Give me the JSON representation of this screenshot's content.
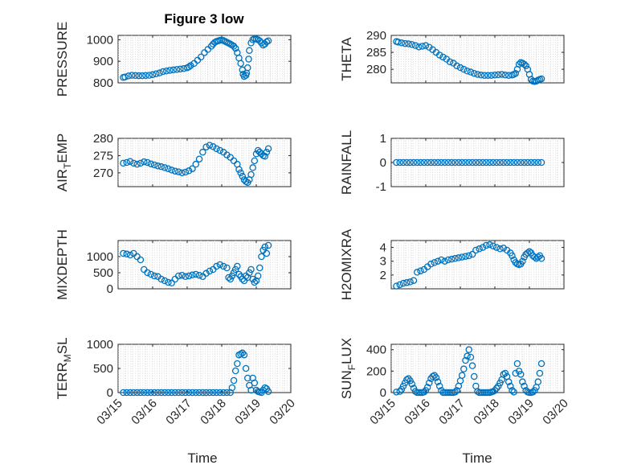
{
  "figure_title": "Figure 3 low",
  "colors": {
    "marker": "#0072BD",
    "axis": "#262626",
    "grid": "#dcdcdc"
  },
  "x_axis": {
    "label": "Time",
    "ticks": [
      0,
      1,
      2,
      3,
      4,
      5
    ],
    "tick_labels": [
      "03/15",
      "03/16",
      "03/17",
      "03/18",
      "03/19",
      "03/20"
    ],
    "range": [
      0,
      5
    ]
  },
  "chart_data": [
    {
      "type": "scatter",
      "id": "pressure",
      "ylabel": "PRESSURE",
      "ylim": [
        800,
        1020
      ],
      "yticks": [
        800,
        900,
        1000
      ],
      "grid": true,
      "x": [
        0.15,
        0.2,
        0.3,
        0.4,
        0.5,
        0.6,
        0.7,
        0.8,
        0.9,
        1.0,
        1.1,
        1.2,
        1.3,
        1.4,
        1.5,
        1.6,
        1.7,
        1.8,
        1.9,
        2.0,
        2.05,
        2.1,
        2.2,
        2.3,
        2.4,
        2.5,
        2.6,
        2.7,
        2.75,
        2.8,
        2.85,
        2.9,
        2.95,
        3.0,
        3.05,
        3.1,
        3.15,
        3.2,
        3.25,
        3.3,
        3.35,
        3.4,
        3.45,
        3.5,
        3.55,
        3.6,
        3.62,
        3.65,
        3.7,
        3.72,
        3.75,
        3.78,
        3.8,
        3.85,
        3.9,
        3.95,
        4.0,
        4.05,
        4.1,
        4.15,
        4.2,
        4.25,
        4.3,
        4.35
      ],
      "y": [
        825,
        827,
        832,
        835,
        834,
        833,
        833,
        834,
        835,
        838,
        842,
        846,
        852,
        855,
        858,
        860,
        862,
        864,
        866,
        870,
        874,
        880,
        890,
        905,
        920,
        940,
        955,
        970,
        980,
        988,
        992,
        995,
        997,
        998,
        996,
        992,
        988,
        984,
        980,
        975,
        970,
        960,
        940,
        915,
        890,
        860,
        840,
        830,
        835,
        845,
        870,
        910,
        950,
        985,
        1000,
        1004,
        1003,
        1000,
        995,
        985,
        975,
        980,
        990,
        995
      ]
    },
    {
      "type": "scatter",
      "id": "theta",
      "ylabel": "THETA",
      "ylim": [
        276,
        290
      ],
      "yticks": [
        280,
        285,
        290
      ],
      "grid": true,
      "x": [
        0.15,
        0.2,
        0.3,
        0.4,
        0.5,
        0.6,
        0.7,
        0.8,
        0.9,
        1.0,
        1.1,
        1.2,
        1.3,
        1.4,
        1.5,
        1.6,
        1.7,
        1.8,
        1.9,
        2.0,
        2.1,
        2.2,
        2.3,
        2.4,
        2.5,
        2.6,
        2.7,
        2.8,
        2.9,
        3.0,
        3.1,
        3.2,
        3.3,
        3.4,
        3.5,
        3.55,
        3.6,
        3.65,
        3.7,
        3.75,
        3.8,
        3.85,
        3.9,
        3.95,
        4.0,
        4.05,
        4.1,
        4.15,
        4.2,
        4.25,
        4.3,
        4.35
      ],
      "y": [
        288.2,
        288,
        287.8,
        287.6,
        287.5,
        287.3,
        287,
        286.6,
        286.8,
        287,
        286.5,
        285.8,
        285,
        284.2,
        283.6,
        283,
        282.2,
        281.8,
        281,
        280.5,
        280,
        279.5,
        279.2,
        278.8,
        278.5,
        278.3,
        278.2,
        278.2,
        278.2,
        278.3,
        278.4,
        278.5,
        278.3,
        278.2,
        278.3,
        278.5,
        278.8,
        280,
        281.5,
        282,
        281.8,
        281.5,
        281,
        280,
        278.5,
        277,
        276.5,
        276.4,
        276.5,
        276.8,
        277,
        277.2
      ]
    },
    {
      "type": "scatter",
      "id": "air_temp",
      "ylabel": "AIR_TEMP",
      "ylim": [
        266,
        280
      ],
      "yticks": [
        270,
        275,
        280
      ],
      "grid": true,
      "x": [
        0.15,
        0.25,
        0.35,
        0.45,
        0.55,
        0.65,
        0.75,
        0.85,
        0.95,
        1.05,
        1.15,
        1.25,
        1.35,
        1.45,
        1.55,
        1.65,
        1.75,
        1.85,
        1.95,
        2.05,
        2.15,
        2.25,
        2.35,
        2.45,
        2.55,
        2.65,
        2.75,
        2.85,
        2.95,
        3.05,
        3.15,
        3.25,
        3.35,
        3.45,
        3.5,
        3.55,
        3.6,
        3.65,
        3.7,
        3.75,
        3.8,
        3.85,
        3.9,
        3.95,
        4.0,
        4.05,
        4.1,
        4.15,
        4.2,
        4.25,
        4.3,
        4.35
      ],
      "y": [
        272.8,
        273,
        273.3,
        272.8,
        272.5,
        272.8,
        273.2,
        273,
        272.6,
        272.3,
        272,
        271.8,
        271.5,
        271.2,
        270.8,
        270.5,
        270.3,
        270,
        270.2,
        270.6,
        271.2,
        272.5,
        274,
        276,
        277.5,
        278,
        277.6,
        277,
        276.5,
        276,
        275.2,
        274.5,
        273.5,
        272.5,
        271,
        270,
        269,
        268,
        267.5,
        267.2,
        268,
        269.5,
        271.5,
        273.5,
        275.5,
        276.5,
        276,
        275.5,
        275,
        274.8,
        276,
        277
      ]
    },
    {
      "type": "scatter",
      "id": "rainfall",
      "ylabel": "RAINFALL",
      "ylim": [
        -1,
        1
      ],
      "yticks": [
        -1,
        0,
        1
      ],
      "grid": true,
      "x": [
        0.15,
        0.25,
        0.35,
        0.45,
        0.55,
        0.65,
        0.75,
        0.85,
        0.95,
        1.05,
        1.15,
        1.25,
        1.35,
        1.45,
        1.55,
        1.65,
        1.75,
        1.85,
        1.95,
        2.05,
        2.15,
        2.25,
        2.35,
        2.45,
        2.55,
        2.65,
        2.75,
        2.85,
        2.95,
        3.05,
        3.15,
        3.25,
        3.35,
        3.45,
        3.55,
        3.65,
        3.75,
        3.85,
        3.95,
        4.05,
        4.15,
        4.25,
        4.35
      ],
      "y": [
        0,
        0,
        0,
        0,
        0,
        0,
        0,
        0,
        0,
        0,
        0,
        0,
        0,
        0,
        0,
        0,
        0,
        0,
        0,
        0,
        0,
        0,
        0,
        0,
        0,
        0,
        0,
        0,
        0,
        0,
        0,
        0,
        0,
        0,
        0,
        0,
        0,
        0,
        0,
        0,
        0,
        0,
        0
      ]
    },
    {
      "type": "scatter",
      "id": "mixdepth",
      "ylabel": "MIXDEPTH",
      "ylim": [
        0,
        1500
      ],
      "yticks": [
        0,
        500,
        1000
      ],
      "grid": true,
      "x": [
        0.15,
        0.25,
        0.35,
        0.45,
        0.55,
        0.65,
        0.75,
        0.85,
        0.95,
        1.05,
        1.15,
        1.25,
        1.35,
        1.45,
        1.55,
        1.65,
        1.75,
        1.85,
        1.95,
        2.05,
        2.15,
        2.25,
        2.35,
        2.45,
        2.55,
        2.65,
        2.75,
        2.85,
        2.95,
        3.05,
        3.15,
        3.2,
        3.25,
        3.3,
        3.35,
        3.4,
        3.45,
        3.5,
        3.55,
        3.6,
        3.65,
        3.7,
        3.75,
        3.8,
        3.85,
        3.9,
        3.95,
        4.0,
        4.05,
        4.1,
        4.15,
        4.2,
        4.25,
        4.3,
        4.35
      ],
      "y": [
        1100,
        1080,
        1050,
        1100,
        1000,
        900,
        600,
        500,
        450,
        400,
        380,
        300,
        250,
        200,
        180,
        300,
        400,
        420,
        380,
        400,
        430,
        450,
        420,
        380,
        480,
        550,
        600,
        700,
        750,
        700,
        650,
        350,
        300,
        400,
        500,
        600,
        700,
        450,
        380,
        300,
        250,
        400,
        350,
        500,
        600,
        300,
        200,
        250,
        400,
        650,
        1000,
        1200,
        1300,
        1100,
        1350
      ]
    },
    {
      "type": "scatter",
      "id": "h2omixra",
      "ylabel": "H2OMIXRA",
      "ylim": [
        1,
        4.5
      ],
      "yticks": [
        2,
        3,
        4
      ],
      "grid": true,
      "x": [
        0.15,
        0.25,
        0.35,
        0.45,
        0.55,
        0.65,
        0.75,
        0.85,
        0.95,
        1.05,
        1.15,
        1.25,
        1.35,
        1.45,
        1.55,
        1.65,
        1.75,
        1.85,
        1.95,
        2.05,
        2.15,
        2.25,
        2.35,
        2.45,
        2.55,
        2.65,
        2.75,
        2.85,
        2.95,
        3.05,
        3.15,
        3.25,
        3.35,
        3.45,
        3.5,
        3.55,
        3.6,
        3.65,
        3.7,
        3.75,
        3.8,
        3.85,
        3.9,
        3.95,
        4.0,
        4.05,
        4.1,
        4.15,
        4.2,
        4.25,
        4.3,
        4.35
      ],
      "y": [
        1.2,
        1.3,
        1.4,
        1.45,
        1.5,
        1.6,
        2.2,
        2.3,
        2.4,
        2.6,
        2.8,
        2.9,
        3.0,
        3.1,
        3.0,
        3.1,
        3.15,
        3.2,
        3.25,
        3.3,
        3.35,
        3.4,
        3.5,
        3.8,
        3.9,
        4.0,
        4.15,
        4.2,
        4.1,
        4.0,
        3.9,
        3.95,
        3.8,
        3.6,
        3.4,
        3.1,
        2.9,
        2.8,
        2.75,
        2.8,
        3.0,
        3.3,
        3.5,
        3.6,
        3.7,
        3.6,
        3.4,
        3.3,
        3.2,
        3.3,
        3.4,
        3.2
      ]
    },
    {
      "type": "scatter",
      "id": "terr_msl",
      "ylabel": "TERR_MSL",
      "ylim": [
        0,
        1000
      ],
      "yticks": [
        0,
        500,
        1000
      ],
      "grid": true,
      "x": [
        0.15,
        0.25,
        0.35,
        0.45,
        0.55,
        0.65,
        0.75,
        0.85,
        0.95,
        1.05,
        1.15,
        1.25,
        1.35,
        1.45,
        1.55,
        1.65,
        1.75,
        1.85,
        1.95,
        2.05,
        2.15,
        2.25,
        2.35,
        2.45,
        2.55,
        2.65,
        2.75,
        2.85,
        2.95,
        3.05,
        3.15,
        3.25,
        3.3,
        3.35,
        3.4,
        3.45,
        3.5,
        3.55,
        3.6,
        3.65,
        3.7,
        3.75,
        3.8,
        3.85,
        3.9,
        3.95,
        4.0,
        4.05,
        4.1,
        4.15,
        4.2,
        4.25,
        4.3,
        4.35
      ],
      "y": [
        0,
        0,
        0,
        0,
        0,
        0,
        0,
        0,
        0,
        0,
        0,
        0,
        0,
        0,
        0,
        0,
        0,
        0,
        0,
        0,
        0,
        0,
        0,
        0,
        0,
        0,
        0,
        0,
        0,
        0,
        0,
        0,
        100,
        250,
        450,
        600,
        780,
        800,
        820,
        780,
        500,
        300,
        150,
        50,
        300,
        200,
        50,
        20,
        10,
        0,
        50,
        100,
        80,
        20
      ]
    },
    {
      "type": "scatter",
      "id": "sun_flux",
      "ylabel": "SUN_FLUX",
      "ylim": [
        0,
        450
      ],
      "yticks": [
        0,
        200,
        400
      ],
      "grid": true,
      "x": [
        0.15,
        0.25,
        0.3,
        0.35,
        0.4,
        0.45,
        0.5,
        0.55,
        0.6,
        0.65,
        0.7,
        0.75,
        0.8,
        0.85,
        0.9,
        0.95,
        1.0,
        1.05,
        1.1,
        1.15,
        1.2,
        1.25,
        1.3,
        1.35,
        1.4,
        1.45,
        1.5,
        1.55,
        1.6,
        1.65,
        1.7,
        1.75,
        1.8,
        1.85,
        1.9,
        1.95,
        2.0,
        2.05,
        2.1,
        2.15,
        2.2,
        2.25,
        2.3,
        2.35,
        2.4,
        2.45,
        2.5,
        2.55,
        2.6,
        2.65,
        2.7,
        2.75,
        2.8,
        2.85,
        2.9,
        2.95,
        3.0,
        3.05,
        3.1,
        3.15,
        3.2,
        3.25,
        3.3,
        3.35,
        3.4,
        3.45,
        3.5,
        3.55,
        3.6,
        3.65,
        3.7,
        3.75,
        3.8,
        3.85,
        3.9,
        3.95,
        4.0,
        4.05,
        4.1,
        4.15,
        4.2,
        4.25,
        4.3,
        4.35
      ],
      "y": [
        5,
        10,
        30,
        60,
        90,
        120,
        130,
        110,
        80,
        40,
        10,
        0,
        0,
        0,
        0,
        5,
        20,
        50,
        90,
        130,
        150,
        160,
        140,
        100,
        60,
        20,
        0,
        0,
        0,
        0,
        0,
        0,
        0,
        5,
        20,
        60,
        110,
        160,
        220,
        300,
        340,
        400,
        330,
        250,
        150,
        60,
        10,
        0,
        0,
        0,
        0,
        0,
        0,
        0,
        5,
        10,
        20,
        40,
        60,
        90,
        120,
        170,
        180,
        150,
        100,
        60,
        20,
        5,
        180,
        270,
        200,
        170,
        100,
        60,
        20,
        5,
        0,
        0,
        5,
        20,
        50,
        100,
        180,
        270
      ]
    }
  ]
}
